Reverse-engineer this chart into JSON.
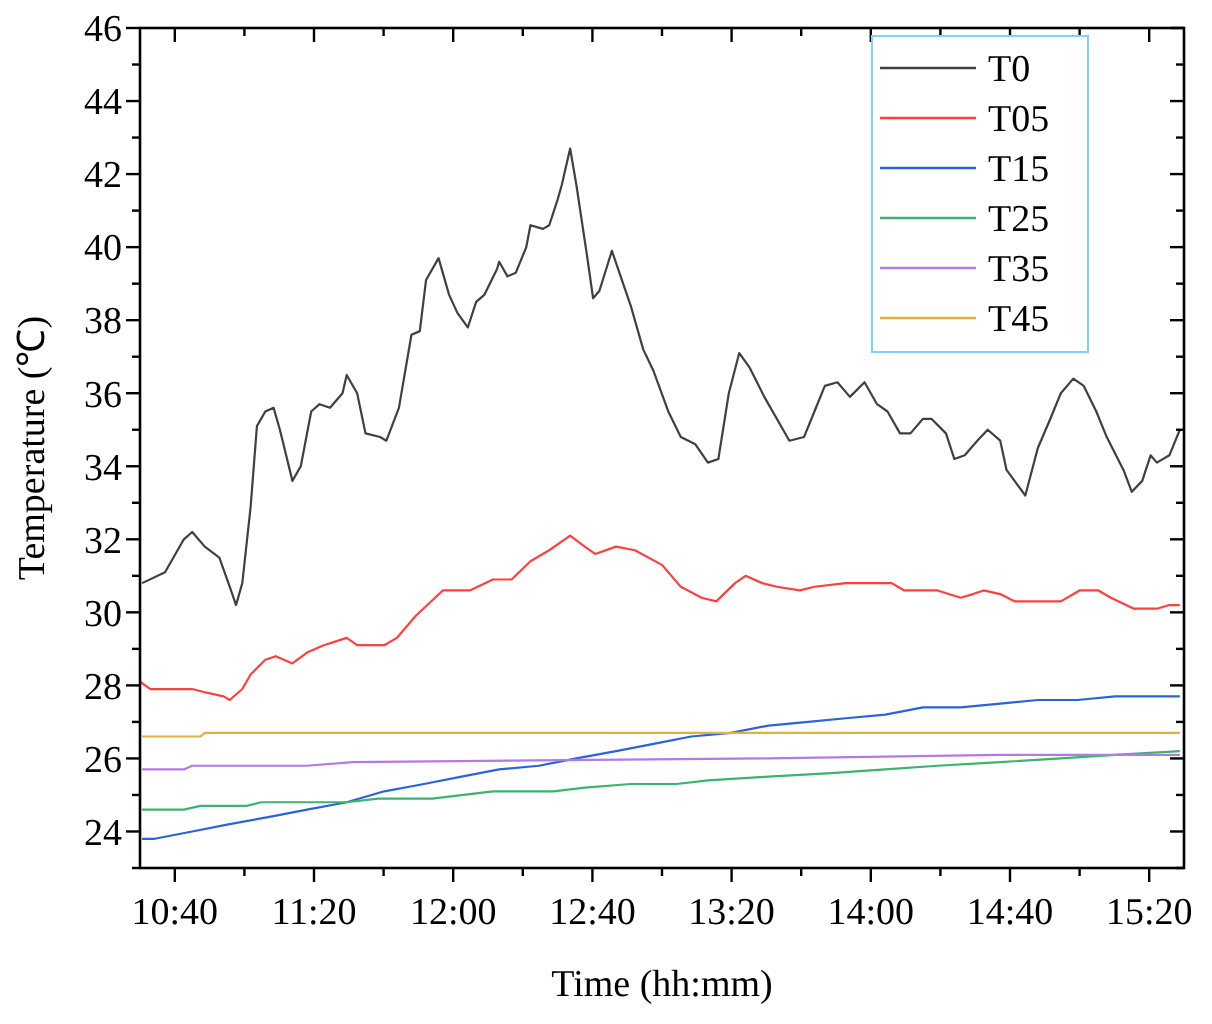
{
  "chart_data": {
    "type": "line",
    "xlabel": "Time (hh:mm)",
    "ylabel": "Temperature (℃)",
    "xlim": [
      10.5,
      15.5
    ],
    "ylim": [
      23,
      46
    ],
    "xticks": [
      {
        "value": 10.6667,
        "label": "10:40"
      },
      {
        "value": 11,
        "label": null
      },
      {
        "value": 11.3333,
        "label": "11:20"
      },
      {
        "value": 11.6667,
        "label": null
      },
      {
        "value": 12,
        "label": "12:00"
      },
      {
        "value": 12.3333,
        "label": null
      },
      {
        "value": 12.6667,
        "label": "12:40"
      },
      {
        "value": 13,
        "label": null
      },
      {
        "value": 13.3333,
        "label": "13:20"
      },
      {
        "value": 13.6667,
        "label": null
      },
      {
        "value": 14,
        "label": "14:00"
      },
      {
        "value": 14.3333,
        "label": null
      },
      {
        "value": 14.6667,
        "label": "14:40"
      },
      {
        "value": 15,
        "label": null
      },
      {
        "value": 15.3333,
        "label": "15:20"
      }
    ],
    "yticks": [
      {
        "value": 23,
        "label": null
      },
      24,
      {
        "value": 25,
        "label": null
      },
      26,
      {
        "value": 27,
        "label": null
      },
      28,
      {
        "value": 29,
        "label": null
      },
      30,
      {
        "value": 31,
        "label": null
      },
      32,
      {
        "value": 33,
        "label": null
      },
      34,
      {
        "value": 35,
        "label": null
      },
      36,
      {
        "value": 37,
        "label": null
      },
      38,
      {
        "value": 39,
        "label": null
      },
      40,
      {
        "value": 41,
        "label": null
      },
      42,
      {
        "value": 43,
        "label": null
      },
      44,
      {
        "value": 45,
        "label": null
      },
      46
    ],
    "grid": false,
    "legend": "top right",
    "line_style": "solid",
    "series": [
      {
        "name": "T0",
        "color": "#404040",
        "x": [
          10.51,
          10.62,
          10.71,
          10.75,
          10.81,
          10.88,
          10.93,
          10.96,
          10.99,
          11.03,
          11.06,
          11.1,
          11.14,
          11.17,
          11.23,
          11.27,
          11.32,
          11.36,
          11.41,
          11.47,
          11.49,
          11.54,
          11.58,
          11.65,
          11.68,
          11.74,
          11.8,
          11.84,
          11.87,
          11.93,
          11.98,
          12.02,
          12.07,
          12.11,
          12.15,
          12.21,
          12.22,
          12.26,
          12.3,
          12.35,
          12.37,
          12.43,
          12.46,
          12.5,
          12.52,
          12.56,
          12.59,
          12.64,
          12.67,
          12.7,
          12.76,
          12.79,
          12.85,
          12.91,
          12.96,
          13.03,
          13.09,
          13.16,
          13.22,
          13.27,
          13.32,
          13.37,
          13.42,
          13.49,
          13.61,
          13.68,
          13.73,
          13.78,
          13.84,
          13.9,
          13.97,
          14.03,
          14.08,
          14.14,
          14.19,
          14.25,
          14.29,
          14.36,
          14.4,
          14.45,
          14.51,
          14.56,
          14.62,
          14.65,
          14.74,
          14.8,
          14.86,
          14.91,
          14.97,
          15.02,
          15.08,
          15.13,
          15.21,
          15.25,
          15.3,
          15.34,
          15.37,
          15.43,
          15.48
        ],
        "values": [
          30.8,
          31.1,
          32.0,
          32.2,
          31.8,
          31.5,
          30.7,
          30.2,
          30.8,
          32.9,
          35.1,
          35.5,
          35.6,
          35.0,
          33.6,
          34.0,
          35.5,
          35.7,
          35.6,
          36.0,
          36.5,
          36.0,
          34.9,
          34.8,
          34.7,
          35.6,
          37.6,
          37.7,
          39.1,
          39.7,
          38.7,
          38.2,
          37.8,
          38.5,
          38.7,
          39.4,
          39.6,
          39.2,
          39.3,
          40.0,
          40.6,
          40.5,
          40.6,
          41.3,
          41.7,
          42.7,
          41.7,
          39.8,
          38.6,
          38.8,
          39.9,
          39.4,
          38.4,
          37.2,
          36.6,
          35.5,
          34.8,
          34.6,
          34.1,
          34.2,
          36.0,
          37.1,
          36.7,
          35.9,
          34.7,
          34.8,
          35.5,
          36.2,
          36.3,
          35.9,
          36.3,
          35.7,
          35.5,
          34.9,
          34.9,
          35.3,
          35.3,
          34.9,
          34.2,
          34.3,
          34.7,
          35.0,
          34.7,
          33.9,
          33.2,
          34.5,
          35.3,
          36.0,
          36.4,
          36.2,
          35.5,
          34.8,
          33.9,
          33.3,
          33.6,
          34.3,
          34.1,
          34.3,
          35.0
        ]
      },
      {
        "name": "T05",
        "color": "#ff4040",
        "x": [
          10.5,
          10.55,
          10.75,
          10.82,
          10.9,
          10.93,
          10.99,
          11.03,
          11.1,
          11.15,
          11.23,
          11.3,
          11.38,
          11.49,
          11.54,
          11.67,
          11.73,
          11.82,
          11.95,
          12.08,
          12.19,
          12.28,
          12.37,
          12.46,
          12.56,
          12.63,
          12.68,
          12.78,
          12.87,
          13.0,
          13.09,
          13.19,
          13.26,
          13.35,
          13.4,
          13.48,
          13.55,
          13.66,
          13.73,
          13.88,
          14.1,
          14.16,
          14.32,
          14.43,
          14.49,
          14.54,
          14.62,
          14.69,
          14.91,
          15.0,
          15.09,
          15.15,
          15.26,
          15.37,
          15.43,
          15.48
        ],
        "values": [
          28.1,
          27.9,
          27.9,
          27.8,
          27.7,
          27.6,
          27.9,
          28.3,
          28.7,
          28.8,
          28.6,
          28.9,
          29.1,
          29.3,
          29.1,
          29.1,
          29.3,
          29.9,
          30.6,
          30.6,
          30.9,
          30.9,
          31.4,
          31.7,
          32.1,
          31.8,
          31.6,
          31.8,
          31.7,
          31.3,
          30.7,
          30.4,
          30.3,
          30.8,
          31.0,
          30.8,
          30.7,
          30.6,
          30.7,
          30.8,
          30.8,
          30.6,
          30.6,
          30.4,
          30.5,
          30.6,
          30.5,
          30.3,
          30.3,
          30.6,
          30.6,
          30.4,
          30.1,
          30.1,
          30.2,
          30.2
        ]
      },
      {
        "name": "T15",
        "color": "#2a64d8",
        "x": [
          10.51,
          10.57,
          10.75,
          10.93,
          11.12,
          11.3,
          11.49,
          11.67,
          11.86,
          12.04,
          12.22,
          12.41,
          12.59,
          12.78,
          12.96,
          13.14,
          13.33,
          13.51,
          13.7,
          13.88,
          14.07,
          14.25,
          14.43,
          14.62,
          14.8,
          14.99,
          15.17,
          15.48
        ],
        "values": [
          23.8,
          23.8,
          24.0,
          24.2,
          24.4,
          24.6,
          24.8,
          25.1,
          25.3,
          25.5,
          25.7,
          25.8,
          26.0,
          26.2,
          26.4,
          26.6,
          26.7,
          26.9,
          27.0,
          27.1,
          27.2,
          27.4,
          27.4,
          27.5,
          27.6,
          27.6,
          27.7,
          27.7
        ]
      },
      {
        "name": "T25",
        "color": "#3cb371",
        "x": [
          10.51,
          10.71,
          10.79,
          11.01,
          11.08,
          11.49,
          11.64,
          11.9,
          12.19,
          12.48,
          12.63,
          12.85,
          13.07,
          13.22,
          13.51,
          13.81,
          14.07,
          14.32,
          14.62,
          14.91,
          15.17,
          15.48
        ],
        "values": [
          24.6,
          24.6,
          24.7,
          24.7,
          24.8,
          24.8,
          24.9,
          24.9,
          25.1,
          25.1,
          25.2,
          25.3,
          25.3,
          25.4,
          25.5,
          25.6,
          25.7,
          25.8,
          25.9,
          26.0,
          26.1,
          26.2
        ]
      },
      {
        "name": "T35",
        "color": "#b27ae6",
        "x": [
          10.51,
          10.71,
          10.75,
          11.3,
          11.52,
          13.51,
          14.62,
          15.48
        ],
        "values": [
          25.7,
          25.7,
          25.8,
          25.8,
          25.9,
          26.0,
          26.1,
          26.1
        ]
      },
      {
        "name": "T45",
        "color": "#e0b040",
        "x": [
          10.51,
          10.79,
          10.81,
          15.48
        ],
        "values": [
          26.6,
          26.6,
          26.7,
          26.7
        ]
      }
    ]
  }
}
